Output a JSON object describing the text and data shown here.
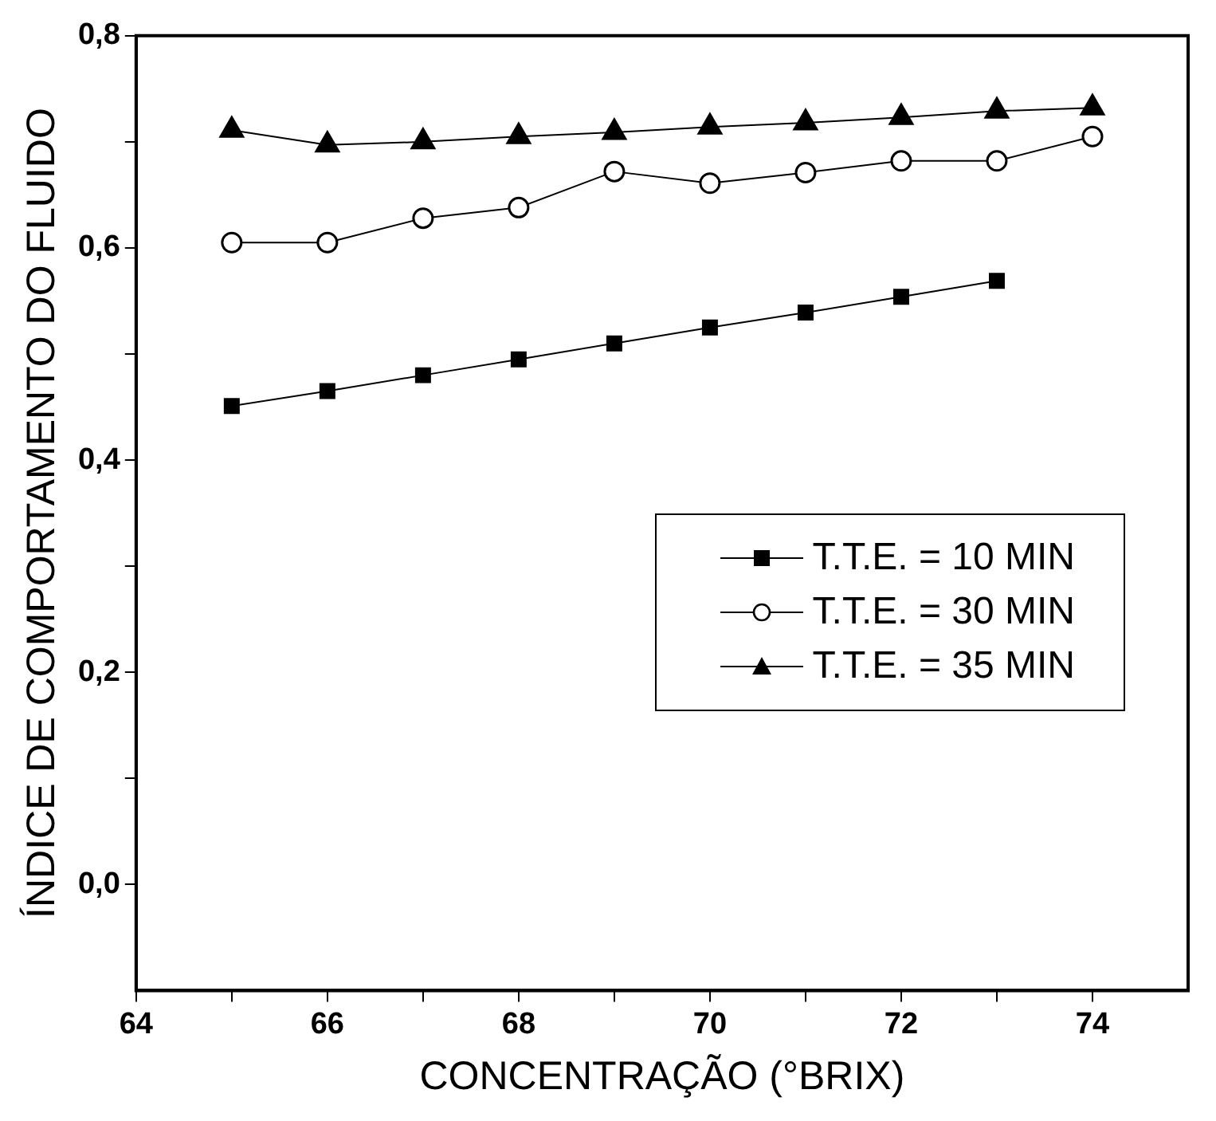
{
  "chart_data": {
    "type": "line",
    "xlabel": "CONCENTRAÇÃO (°BRIX)",
    "ylabel": "ÍNDICE DE COMPORTAMENTO DO FLUIDO",
    "x": [
      65,
      66,
      67,
      68,
      69,
      70,
      71,
      72,
      73,
      74
    ],
    "series": [
      {
        "name": "T.T.E. = 10 MIN",
        "color": "#000000",
        "marker": "square",
        "values": [
          0.451,
          0.465,
          0.48,
          0.495,
          0.51,
          0.525,
          0.539,
          0.554,
          0.569,
          null
        ]
      },
      {
        "name": "T.T.E. = 30 MIN",
        "color": "#000000",
        "marker": "circle",
        "values": [
          0.605,
          0.605,
          0.628,
          0.638,
          0.672,
          0.661,
          0.671,
          0.682,
          0.682,
          0.705
        ]
      },
      {
        "name": "T.T.E. = 35 MIN",
        "color": "#000000",
        "marker": "triangle",
        "values": [
          0.711,
          0.697,
          0.7,
          0.705,
          0.709,
          0.714,
          0.718,
          0.723,
          0.729,
          0.732
        ]
      }
    ],
    "xlim": [
      64,
      75
    ],
    "xticks": [
      64,
      {
        "value": 65,
        "label": null
      },
      66,
      {
        "value": 67,
        "label": null
      },
      68,
      {
        "value": 69,
        "label": null
      },
      70,
      {
        "value": 71,
        "label": null
      },
      72,
      {
        "value": 73,
        "label": null
      },
      74
    ],
    "ylim": [
      -0.1,
      0.8
    ],
    "yticks": [
      {
        "value": 0,
        "label": "0,0"
      },
      {
        "value": 0.1,
        "label": null
      },
      {
        "value": 0.2,
        "label": "0,2"
      },
      {
        "value": 0.3,
        "label": null
      },
      {
        "value": 0.4,
        "label": "0,4"
      },
      {
        "value": 0.5,
        "label": null
      },
      {
        "value": 0.6,
        "label": "0,6"
      },
      {
        "value": 0.7,
        "label": null
      },
      {
        "value": 0.8,
        "label": "0,8"
      }
    ],
    "grid": false,
    "legend": "right",
    "line_style": "solid"
  }
}
